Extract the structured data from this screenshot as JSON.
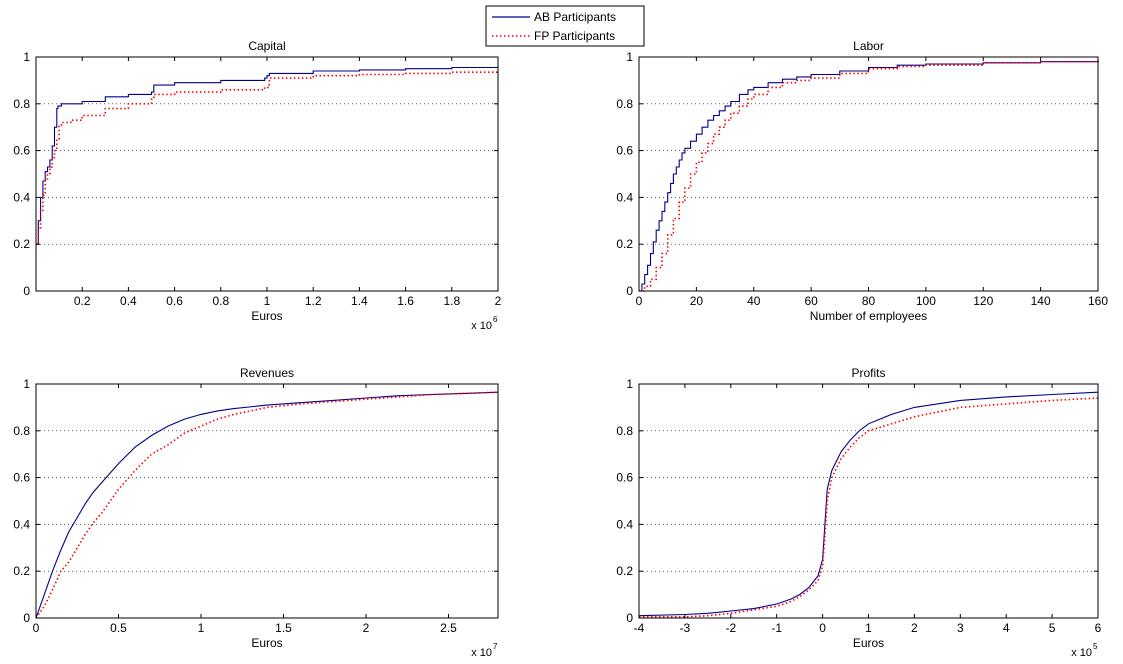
{
  "legend": {
    "placement": "top-center",
    "entries": [
      {
        "label": "AB Participants",
        "color": "#00008b",
        "style": "solid"
      },
      {
        "label": "FP Participants",
        "color": "#ff0000",
        "style": "dotted"
      }
    ]
  },
  "chart_data": [
    {
      "type": "line",
      "title": "Capital",
      "xlabel": "Euros",
      "x_exponent": "x 10",
      "x_exponent_power": "6",
      "xlim": [
        0,
        2000000
      ],
      "ylim": [
        0,
        1
      ],
      "xticks": [
        200000,
        400000,
        600000,
        800000,
        1000000,
        1200000,
        1400000,
        1600000,
        1800000,
        2000000
      ],
      "xtick_labels": [
        "0.2",
        "0.4",
        "0.6",
        "0.8",
        "1",
        "1.2",
        "1.4",
        "1.6",
        "1.8",
        "2"
      ],
      "yticks": [
        0,
        0.2,
        0.4,
        0.6,
        0.8,
        1
      ],
      "ytick_labels": [
        "0",
        "0.2",
        "0.4",
        "0.6",
        "0.8",
        "1"
      ],
      "grid": "horizontal-dotted",
      "step": true,
      "series": [
        {
          "name": "AB Participants",
          "color": "#00008b",
          "style": "solid",
          "x": [
            0,
            10000,
            20000,
            30000,
            40000,
            50000,
            60000,
            70000,
            80000,
            90000,
            95000,
            100000,
            110000,
            150000,
            200000,
            300000,
            400000,
            500000,
            510000,
            600000,
            800000,
            990000,
            1000000,
            1010000,
            1200000,
            1400000,
            1600000,
            1800000,
            2000000
          ],
          "y": [
            0.2,
            0.3,
            0.4,
            0.47,
            0.51,
            0.53,
            0.56,
            0.62,
            0.7,
            0.78,
            0.79,
            0.79,
            0.8,
            0.8,
            0.81,
            0.83,
            0.84,
            0.85,
            0.88,
            0.89,
            0.9,
            0.91,
            0.92,
            0.93,
            0.94,
            0.945,
            0.95,
            0.955,
            0.96
          ]
        },
        {
          "name": "FP Participants",
          "color": "#ff0000",
          "style": "dotted",
          "x": [
            0,
            10000,
            20000,
            30000,
            40000,
            50000,
            60000,
            70000,
            80000,
            90000,
            100000,
            110000,
            150000,
            200000,
            300000,
            400000,
            500000,
            510000,
            600000,
            800000,
            990000,
            1000000,
            1010000,
            1200000,
            1400000,
            1600000,
            1800000,
            2000000
          ],
          "y": [
            0.2,
            0.27,
            0.34,
            0.41,
            0.47,
            0.5,
            0.53,
            0.57,
            0.6,
            0.65,
            0.71,
            0.72,
            0.73,
            0.75,
            0.78,
            0.8,
            0.82,
            0.84,
            0.85,
            0.86,
            0.87,
            0.87,
            0.91,
            0.92,
            0.925,
            0.93,
            0.935,
            0.94
          ]
        }
      ]
    },
    {
      "type": "line",
      "title": "Labor",
      "xlabel": "Number of employees",
      "xlim": [
        0,
        160
      ],
      "ylim": [
        0,
        1
      ],
      "xticks": [
        0,
        20,
        40,
        60,
        80,
        100,
        120,
        140,
        160
      ],
      "xtick_labels": [
        "0",
        "20",
        "40",
        "60",
        "80",
        "100",
        "120",
        "140",
        "160"
      ],
      "yticks": [
        0,
        0.2,
        0.4,
        0.6,
        0.8,
        1
      ],
      "ytick_labels": [
        "0",
        "0.2",
        "0.4",
        "0.6",
        "0.8",
        "1"
      ],
      "grid": "horizontal-dotted",
      "step": true,
      "series": [
        {
          "name": "AB Participants",
          "color": "#00008b",
          "style": "solid",
          "x": [
            0,
            1,
            2,
            3,
            4,
            5,
            6,
            7,
            8,
            9,
            10,
            11,
            12,
            13,
            14,
            15,
            16,
            18,
            20,
            22,
            24,
            26,
            28,
            30,
            32,
            35,
            38,
            40,
            45,
            50,
            55,
            60,
            70,
            80,
            90,
            100,
            120,
            140,
            160
          ],
          "y": [
            0,
            0.03,
            0.07,
            0.11,
            0.16,
            0.21,
            0.26,
            0.3,
            0.34,
            0.38,
            0.42,
            0.46,
            0.5,
            0.53,
            0.56,
            0.59,
            0.61,
            0.64,
            0.67,
            0.7,
            0.73,
            0.75,
            0.77,
            0.79,
            0.81,
            0.84,
            0.86,
            0.87,
            0.89,
            0.905,
            0.915,
            0.925,
            0.94,
            0.955,
            0.965,
            0.97,
            0.975,
            0.98,
            0.985
          ]
        },
        {
          "name": "FP Participants",
          "color": "#ff0000",
          "style": "dotted",
          "x": [
            0,
            2,
            4,
            6,
            8,
            10,
            12,
            14,
            16,
            18,
            20,
            22,
            24,
            26,
            28,
            30,
            32,
            35,
            38,
            40,
            45,
            50,
            55,
            60,
            70,
            80,
            90,
            100,
            120,
            140,
            160
          ],
          "y": [
            0,
            0.02,
            0.05,
            0.1,
            0.16,
            0.24,
            0.31,
            0.38,
            0.44,
            0.5,
            0.55,
            0.59,
            0.63,
            0.67,
            0.7,
            0.73,
            0.76,
            0.79,
            0.82,
            0.84,
            0.87,
            0.89,
            0.9,
            0.91,
            0.93,
            0.95,
            0.96,
            0.965,
            0.975,
            0.98,
            0.985
          ]
        }
      ]
    },
    {
      "type": "line",
      "title": "Revenues",
      "xlabel": "Euros",
      "x_exponent": "x 10",
      "x_exponent_power": "7",
      "xlim": [
        0,
        28000000
      ],
      "ylim": [
        0,
        1
      ],
      "xticks": [
        0,
        5000000,
        10000000,
        15000000,
        20000000,
        25000000
      ],
      "xtick_labels": [
        "0",
        "0.5",
        "1",
        "1.5",
        "2",
        "2.5"
      ],
      "yticks": [
        0,
        0.2,
        0.4,
        0.6,
        0.8,
        1
      ],
      "ytick_labels": [
        "0",
        "0.2",
        "0.4",
        "0.6",
        "0.8",
        "1"
      ],
      "grid": "horizontal-dotted",
      "step": false,
      "series": [
        {
          "name": "AB Participants",
          "color": "#00008b",
          "style": "solid",
          "x": [
            0,
            500000,
            1000000,
            1500000,
            2000000,
            2500000,
            3000000,
            3500000,
            4000000,
            5000000,
            6000000,
            7000000,
            8000000,
            9000000,
            10000000,
            11000000,
            12000000,
            14000000,
            16000000,
            18000000,
            20000000,
            22000000,
            24000000,
            26000000,
            28000000
          ],
          "y": [
            0,
            0.1,
            0.2,
            0.29,
            0.37,
            0.43,
            0.49,
            0.54,
            0.58,
            0.66,
            0.73,
            0.78,
            0.82,
            0.85,
            0.87,
            0.885,
            0.895,
            0.91,
            0.92,
            0.93,
            0.94,
            0.95,
            0.955,
            0.96,
            0.965
          ]
        },
        {
          "name": "FP Participants",
          "color": "#ff0000",
          "style": "dotted",
          "x": [
            0,
            500000,
            1000000,
            1500000,
            2000000,
            2500000,
            3000000,
            3500000,
            4000000,
            5000000,
            6000000,
            7000000,
            8000000,
            9000000,
            10000000,
            11000000,
            12000000,
            14000000,
            16000000,
            18000000,
            20000000,
            22000000,
            24000000,
            26000000,
            28000000
          ],
          "y": [
            0,
            0.05,
            0.12,
            0.2,
            0.24,
            0.3,
            0.36,
            0.41,
            0.45,
            0.55,
            0.63,
            0.7,
            0.74,
            0.79,
            0.82,
            0.85,
            0.87,
            0.9,
            0.915,
            0.925,
            0.935,
            0.945,
            0.955,
            0.96,
            0.965
          ]
        }
      ]
    },
    {
      "type": "line",
      "title": "Profits",
      "xlabel": "Euros",
      "x_exponent": "x 10",
      "x_exponent_power": "5",
      "xlim": [
        -400000,
        600000
      ],
      "ylim": [
        0,
        1
      ],
      "xticks": [
        -400000,
        -300000,
        -200000,
        -100000,
        0,
        100000,
        200000,
        300000,
        400000,
        500000,
        600000
      ],
      "xtick_labels": [
        "-4",
        "-3",
        "-2",
        "-1",
        "0",
        "1",
        "2",
        "3",
        "4",
        "5",
        "6"
      ],
      "yticks": [
        0,
        0.2,
        0.4,
        0.6,
        0.8,
        1
      ],
      "ytick_labels": [
        "0",
        "0.2",
        "0.4",
        "0.6",
        "0.8",
        "1"
      ],
      "grid": "horizontal-dotted",
      "step": false,
      "series": [
        {
          "name": "AB Participants",
          "color": "#00008b",
          "style": "solid",
          "x": [
            -400000,
            -300000,
            -250000,
            -200000,
            -150000,
            -100000,
            -70000,
            -50000,
            -30000,
            -10000,
            0,
            5000,
            10000,
            20000,
            40000,
            60000,
            80000,
            100000,
            150000,
            200000,
            300000,
            400000,
            500000,
            600000
          ],
          "y": [
            0.01,
            0.015,
            0.02,
            0.03,
            0.04,
            0.06,
            0.08,
            0.1,
            0.13,
            0.18,
            0.25,
            0.4,
            0.55,
            0.63,
            0.71,
            0.76,
            0.8,
            0.83,
            0.87,
            0.9,
            0.93,
            0.945,
            0.955,
            0.965
          ]
        },
        {
          "name": "FP Participants",
          "color": "#ff0000",
          "style": "dotted",
          "x": [
            -400000,
            -300000,
            -250000,
            -200000,
            -150000,
            -100000,
            -70000,
            -50000,
            -30000,
            -10000,
            0,
            5000,
            10000,
            20000,
            40000,
            60000,
            80000,
            100000,
            150000,
            200000,
            300000,
            400000,
            500000,
            600000
          ],
          "y": [
            0.005,
            0.005,
            0.01,
            0.02,
            0.035,
            0.05,
            0.07,
            0.09,
            0.12,
            0.16,
            0.22,
            0.35,
            0.5,
            0.6,
            0.68,
            0.73,
            0.77,
            0.8,
            0.83,
            0.86,
            0.9,
            0.915,
            0.93,
            0.94
          ]
        }
      ]
    }
  ]
}
